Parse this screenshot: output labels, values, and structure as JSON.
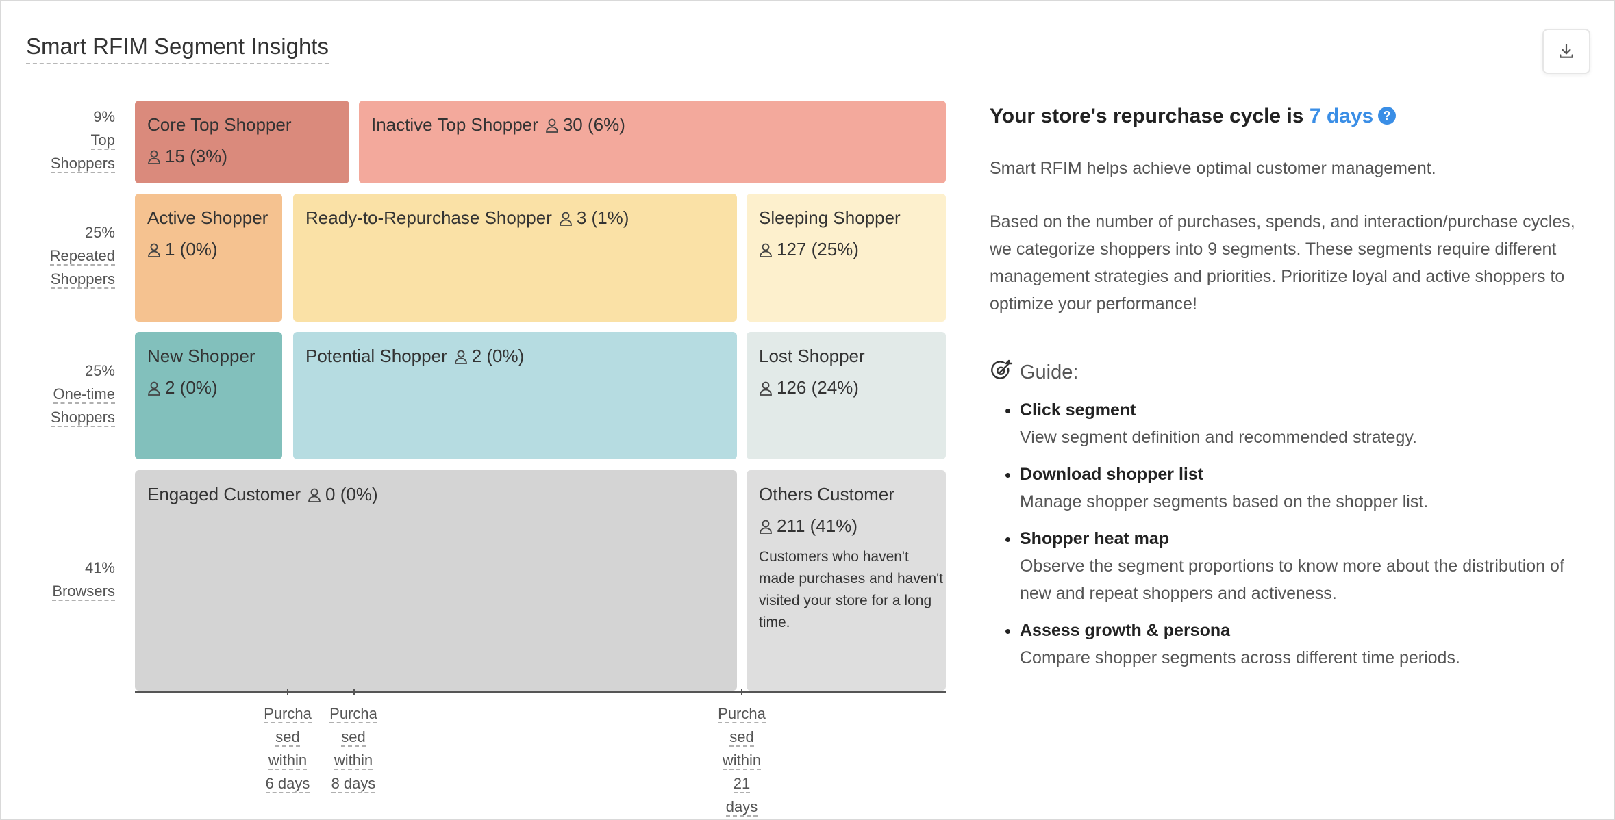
{
  "title": "Smart RFIM Segment Insights",
  "download_icon": "download-icon",
  "rows": [
    {
      "pct": "9%",
      "label_lines": [
        "Top",
        "Shoppers"
      ]
    },
    {
      "pct": "25%",
      "label_lines": [
        "Repeated",
        "Shoppers"
      ]
    },
    {
      "pct": "25%",
      "label_lines": [
        "One-time",
        "Shoppers"
      ]
    },
    {
      "pct": "41%",
      "label_lines": [
        "Browsers"
      ]
    }
  ],
  "segments": {
    "core_top": {
      "name": "Core Top Shopper",
      "count": "15 (3%)",
      "color": "#DA8A7C"
    },
    "inactive_top": {
      "name": "Inactive Top Shopper",
      "count": "30 (6%)",
      "color": "#F3A99C"
    },
    "active": {
      "name": "Active Shopper",
      "count": "1 (0%)",
      "color": "#F5C290"
    },
    "ready": {
      "name": "Ready-to-Repurchase Shopper",
      "count": "3 (1%)",
      "color": "#FAE1A6"
    },
    "sleeping": {
      "name": "Sleeping Shopper",
      "count": "127 (25%)",
      "color": "#FDF0CD"
    },
    "new": {
      "name": "New Shopper",
      "count": "2 (0%)",
      "color": "#82C0BC"
    },
    "potential": {
      "name": "Potential Shopper",
      "count": "2 (0%)",
      "color": "#B6DCE1"
    },
    "lost": {
      "name": "Lost Shopper",
      "count": "126 (24%)",
      "color": "#E2EAE8"
    },
    "engaged": {
      "name": "Engaged Customer",
      "count": "0 (0%)",
      "color": "#D4D4D4"
    },
    "others": {
      "name": "Others Customer",
      "count": "211 (41%)",
      "color": "#DEDEDE",
      "desc": "Customers who haven't made purchases and haven't visited your store for a long time."
    }
  },
  "x_axis": [
    {
      "lines": [
        "Purcha",
        "sed",
        "within",
        "6 days"
      ]
    },
    {
      "lines": [
        "Purcha",
        "sed",
        "within",
        "8 days"
      ]
    },
    {
      "lines": [
        "Purcha",
        "sed",
        "within",
        "21",
        "days"
      ]
    }
  ],
  "cycle": {
    "prefix": "Your store's repurchase cycle is",
    "days": "7 days"
  },
  "intro": "Smart RFIM helps achieve optimal customer management.",
  "detail": "Based on the number of purchases, spends, and interaction/purchase cycles, we categorize shoppers into 9 segments. These segments require different management strategies and priorities. Prioritize loyal and active shoppers to optimize your performance!",
  "guide": {
    "title": "Guide:",
    "items": [
      {
        "heading": "Click segment",
        "text": "View segment definition and recommended strategy."
      },
      {
        "heading": "Download shopper list",
        "text": "Manage shopper segments based on the shopper list."
      },
      {
        "heading": "Shopper heat map",
        "text": "Observe the segment proportions to know more about the distribution of new and repeat shoppers and activeness."
      },
      {
        "heading": "Assess growth & persona",
        "text": "Compare shopper segments across different time periods."
      }
    ]
  }
}
